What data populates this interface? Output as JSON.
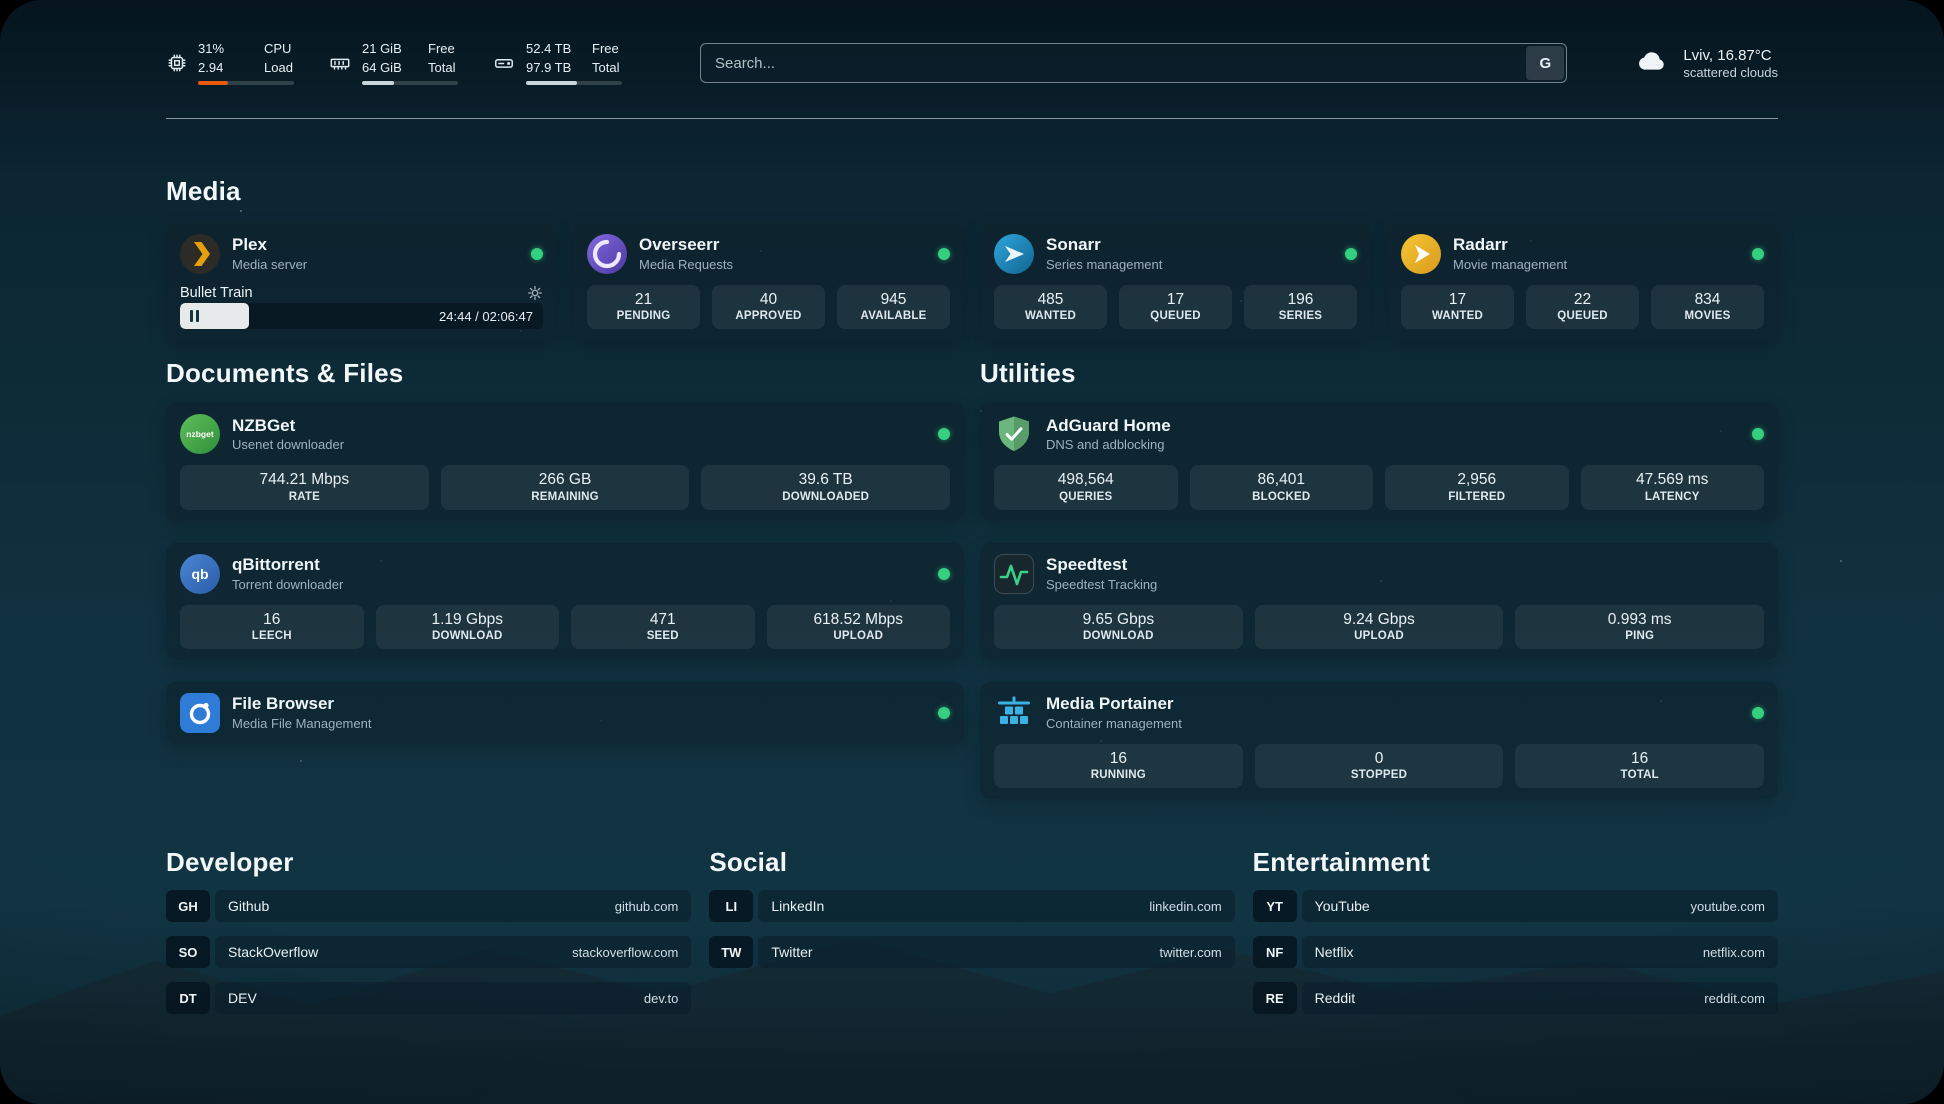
{
  "topbar": {
    "cpu": {
      "value_top": "31%",
      "value_bottom": "2.94",
      "label_top": "CPU",
      "label_bottom": "Load",
      "bar_percent": 31
    },
    "ram": {
      "value_top": "21 GiB",
      "value_bottom": "64 GiB",
      "label_top": "Free",
      "label_bottom": "Total",
      "bar_percent": 33
    },
    "disk": {
      "value_top": "52.4 TB",
      "value_bottom": "97.9 TB",
      "label_top": "Free",
      "label_bottom": "Total",
      "bar_percent": 53
    },
    "search": {
      "placeholder": "Search...",
      "engine_button": "G"
    },
    "weather": {
      "location": "Lviv, 16.87°C",
      "condition": "scattered clouds"
    }
  },
  "sections": {
    "media_title": "Media",
    "documents_title": "Documents & Files",
    "utilities_title": "Utilities",
    "developer_title": "Developer",
    "social_title": "Social",
    "entertainment_title": "Entertainment"
  },
  "apps": {
    "plex": {
      "name": "Plex",
      "subtitle": "Media server",
      "now_playing": "Bullet Train",
      "time": "24:44 / 02:06:47",
      "progress_percent": 19
    },
    "overseerr": {
      "name": "Overseerr",
      "subtitle": "Media Requests",
      "stats": [
        {
          "value": "21",
          "label": "PENDING"
        },
        {
          "value": "40",
          "label": "APPROVED"
        },
        {
          "value": "945",
          "label": "AVAILABLE"
        }
      ]
    },
    "sonarr": {
      "name": "Sonarr",
      "subtitle": "Series management",
      "stats": [
        {
          "value": "485",
          "label": "WANTED"
        },
        {
          "value": "17",
          "label": "QUEUED"
        },
        {
          "value": "196",
          "label": "SERIES"
        }
      ]
    },
    "radarr": {
      "name": "Radarr",
      "subtitle": "Movie management",
      "stats": [
        {
          "value": "17",
          "label": "WANTED"
        },
        {
          "value": "22",
          "label": "QUEUED"
        },
        {
          "value": "834",
          "label": "MOVIES"
        }
      ]
    },
    "nzbget": {
      "name": "NZBGet",
      "subtitle": "Usenet downloader",
      "stats": [
        {
          "value": "744.21 Mbps",
          "label": "RATE"
        },
        {
          "value": "266 GB",
          "label": "REMAINING"
        },
        {
          "value": "39.6 TB",
          "label": "DOWNLOADED"
        }
      ]
    },
    "qbittorrent": {
      "name": "qBittorrent",
      "subtitle": "Torrent downloader",
      "stats": [
        {
          "value": "16",
          "label": "LEECH"
        },
        {
          "value": "1.19 Gbps",
          "label": "DOWNLOAD"
        },
        {
          "value": "471",
          "label": "SEED"
        },
        {
          "value": "618.52 Mbps",
          "label": "UPLOAD"
        }
      ]
    },
    "filebrowser": {
      "name": "File Browser",
      "subtitle": "Media File Management"
    },
    "adguard": {
      "name": "AdGuard Home",
      "subtitle": "DNS and adblocking",
      "stats": [
        {
          "value": "498,564",
          "label": "QUERIES"
        },
        {
          "value": "86,401",
          "label": "BLOCKED"
        },
        {
          "value": "2,956",
          "label": "FILTERED"
        },
        {
          "value": "47.569 ms",
          "label": "LATENCY"
        }
      ]
    },
    "speedtest": {
      "name": "Speedtest",
      "subtitle": "Speedtest Tracking",
      "stats": [
        {
          "value": "9.65 Gbps",
          "label": "DOWNLOAD"
        },
        {
          "value": "9.24 Gbps",
          "label": "UPLOAD"
        },
        {
          "value": "0.993 ms",
          "label": "PING"
        }
      ]
    },
    "portainer": {
      "name": "Media Portainer",
      "subtitle": "Container management",
      "stats": [
        {
          "value": "16",
          "label": "RUNNING"
        },
        {
          "value": "0",
          "label": "STOPPED"
        },
        {
          "value": "16",
          "label": "TOTAL"
        }
      ]
    }
  },
  "bookmarks": {
    "developer": [
      {
        "abbr": "GH",
        "name": "Github",
        "url": "github.com"
      },
      {
        "abbr": "SO",
        "name": "StackOverflow",
        "url": "stackoverflow.com"
      },
      {
        "abbr": "DT",
        "name": "DEV",
        "url": "dev.to"
      }
    ],
    "social": [
      {
        "abbr": "LI",
        "name": "LinkedIn",
        "url": "linkedin.com"
      },
      {
        "abbr": "TW",
        "name": "Twitter",
        "url": "twitter.com"
      }
    ],
    "entertainment": [
      {
        "abbr": "YT",
        "name": "YouTube",
        "url": "youtube.com"
      },
      {
        "abbr": "NF",
        "name": "Netflix",
        "url": "netflix.com"
      },
      {
        "abbr": "RE",
        "name": "Reddit",
        "url": "reddit.com"
      }
    ]
  },
  "icons": {
    "cpu": "cpu-chip",
    "ram": "memory-stick",
    "disk": "hard-drive",
    "weather": "cloud",
    "plex_media_row": "gear",
    "player_state": "pause",
    "status": "green-dot"
  },
  "colors": {
    "status_online": "#35d07f",
    "cpu_bar": "#e8590c",
    "plex_accent": "#e5a00d",
    "card_bg": "rgba(13,35,46,0.66)"
  }
}
